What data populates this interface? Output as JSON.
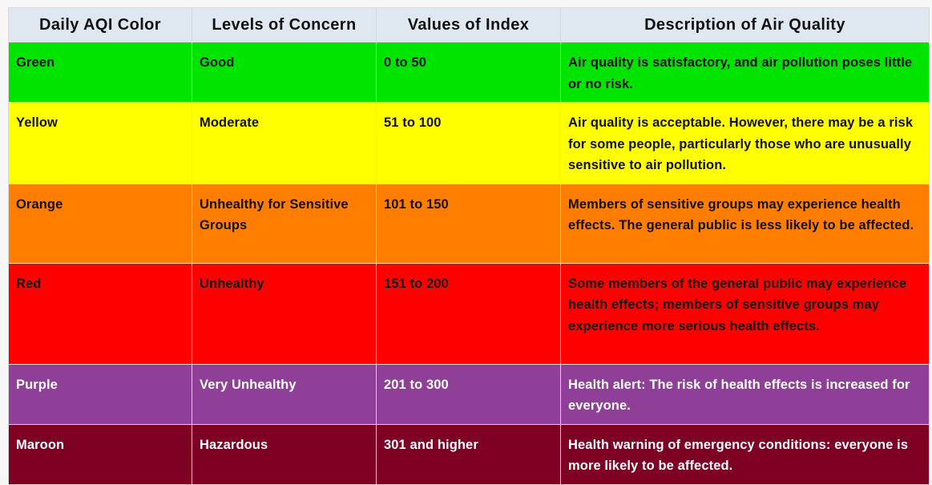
{
  "table": {
    "headers": [
      "Daily AQI Color",
      "Levels of Concern",
      "Values of Index",
      "Description of Air Quality"
    ],
    "rows": [
      {
        "color": "Green",
        "level": "Good",
        "values": "0 to 50",
        "description": "Air quality is satisfactory, and air pollution poses little or no risk.",
        "bg": "#00e400"
      },
      {
        "color": "Yellow",
        "level": "Moderate",
        "values": "51 to 100",
        "description": "Air quality is acceptable. However, there may be a risk for some people, particularly those who are unusually sensitive to air pollution.",
        "bg": "#ffff00"
      },
      {
        "color": "Orange",
        "level": "Unhealthy for Sensitive Groups",
        "values": "101 to 150",
        "description": "Members of sensitive groups may experience health effects. The general public is less likely to be affected.",
        "bg": "#ff7e00"
      },
      {
        "color": "Red",
        "level": "Unhealthy",
        "values": "151 to 200",
        "description": "Some members of the general public may experience health effects; members of sensitive groups may experience more serious health effects.",
        "bg": "#ff0000"
      },
      {
        "color": "Purple",
        "level": "Very Unhealthy",
        "values": "201 to 300",
        "description": "Health alert: The risk of health effects is increased for everyone.",
        "bg": "#8f3f97"
      },
      {
        "color": "Maroon",
        "level": "Hazardous",
        "values": "301 and higher",
        "description": "Health warning of emergency conditions: everyone is more likely to be affected.",
        "bg": "#7e0023"
      }
    ]
  }
}
